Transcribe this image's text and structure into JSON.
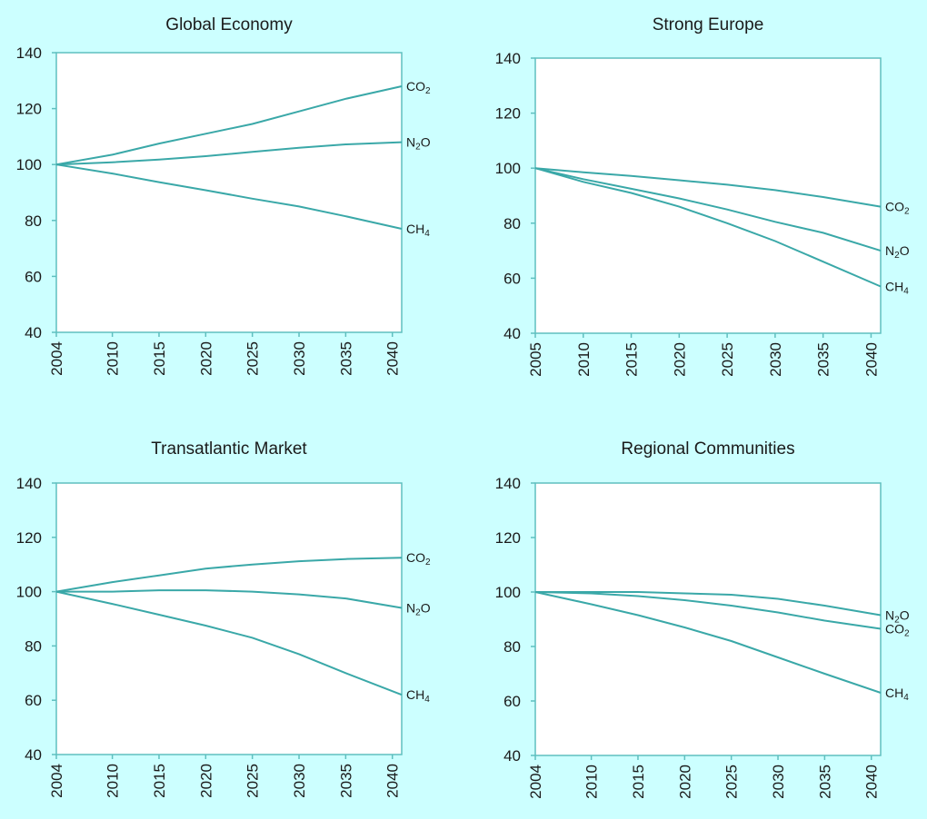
{
  "colors": {
    "background": "#ccffff",
    "plot_bg": "#ffffff",
    "axis": "#5fbfbf",
    "line": "#3aa8a8"
  },
  "chart_data": [
    {
      "type": "line",
      "title": "Global Economy",
      "xlim": [
        2004,
        2041
      ],
      "ylim": [
        40,
        140
      ],
      "yticks": [
        "40",
        "60",
        "80",
        "100",
        "120",
        "140"
      ],
      "xticks": [
        "2004",
        "2010",
        "2015",
        "2020",
        "2025",
        "2030",
        "2035",
        "2040"
      ],
      "series": [
        {
          "label_main": "CO",
          "label_sub": "2",
          "x": [
            2004,
            2010,
            2015,
            2020,
            2025,
            2030,
            2035,
            2041
          ],
          "y": [
            100,
            103.5,
            107.5,
            111,
            114.5,
            119,
            123.5,
            128
          ]
        },
        {
          "label_main": "N",
          "label_sub": "2",
          "label_tail": "O",
          "x": [
            2004,
            2010,
            2015,
            2020,
            2025,
            2030,
            2035,
            2041
          ],
          "y": [
            100,
            100.8,
            101.8,
            103,
            104.5,
            106,
            107.2,
            108
          ]
        },
        {
          "label_main": "CH",
          "label_sub": "4",
          "x": [
            2004,
            2010,
            2015,
            2020,
            2025,
            2030,
            2035,
            2041
          ],
          "y": [
            100,
            96.8,
            93.7,
            90.8,
            87.8,
            85,
            81.5,
            77
          ]
        }
      ]
    },
    {
      "type": "line",
      "title": "Strong Europe",
      "xlim": [
        2005,
        2041
      ],
      "ylim": [
        40,
        140
      ],
      "yticks": [
        "40",
        "60",
        "80",
        "100",
        "120",
        "140"
      ],
      "xticks": [
        "2005",
        "2010",
        "2015",
        "2020",
        "2025",
        "2030",
        "2035",
        "2040"
      ],
      "series": [
        {
          "label_main": "CO",
          "label_sub": "2",
          "x": [
            2005,
            2010,
            2015,
            2020,
            2025,
            2030,
            2035,
            2041
          ],
          "y": [
            100,
            98.5,
            97.2,
            95.6,
            94,
            92,
            89.5,
            86
          ]
        },
        {
          "label_main": "N",
          "label_sub": "2",
          "label_tail": "O",
          "x": [
            2005,
            2010,
            2015,
            2020,
            2025,
            2030,
            2035,
            2041
          ],
          "y": [
            100,
            96,
            92.5,
            89,
            85,
            80.5,
            76.5,
            70
          ]
        },
        {
          "label_main": "CH",
          "label_sub": "4",
          "x": [
            2005,
            2010,
            2015,
            2020,
            2025,
            2030,
            2035,
            2041
          ],
          "y": [
            100,
            95,
            91,
            86,
            80,
            73.5,
            66,
            57
          ]
        }
      ]
    },
    {
      "type": "line",
      "title": "Transatlantic Market",
      "xlim": [
        2004,
        2041
      ],
      "ylim": [
        40,
        140
      ],
      "yticks": [
        "40",
        "60",
        "80",
        "100",
        "120",
        "140"
      ],
      "xticks": [
        "2004",
        "2010",
        "2015",
        "2020",
        "2025",
        "2030",
        "2035",
        "2040"
      ],
      "series": [
        {
          "label_main": "CO",
          "label_sub": "2",
          "x": [
            2004,
            2010,
            2015,
            2020,
            2025,
            2030,
            2035,
            2041
          ],
          "y": [
            100,
            103.5,
            106,
            108.5,
            110,
            111.2,
            112,
            112.5
          ]
        },
        {
          "label_main": "N",
          "label_sub": "2",
          "label_tail": "O",
          "x": [
            2004,
            2010,
            2015,
            2020,
            2025,
            2030,
            2035,
            2041
          ],
          "y": [
            100,
            100,
            100.5,
            100.5,
            100,
            99,
            97.5,
            94
          ]
        },
        {
          "label_main": "CH",
          "label_sub": "4",
          "x": [
            2004,
            2010,
            2015,
            2020,
            2025,
            2030,
            2035,
            2041
          ],
          "y": [
            100,
            95.5,
            91.5,
            87.5,
            83,
            77,
            70,
            62
          ]
        }
      ]
    },
    {
      "type": "line",
      "title": "Regional Communities",
      "xlim": [
        2004,
        2041
      ],
      "ylim": [
        40,
        140
      ],
      "yticks": [
        "40",
        "60",
        "80",
        "100",
        "120",
        "140"
      ],
      "xticks": [
        "2004",
        "2010",
        "2015",
        "2020",
        "2025",
        "2030",
        "2035",
        "2040"
      ],
      "series": [
        {
          "label_main": "N",
          "label_sub": "2",
          "label_tail": "O",
          "x": [
            2004,
            2010,
            2015,
            2020,
            2025,
            2030,
            2035,
            2041
          ],
          "y": [
            100,
            100,
            100,
            99.5,
            99,
            97.5,
            95,
            91.5
          ]
        },
        {
          "label_main": "CO",
          "label_sub": "2",
          "x": [
            2004,
            2010,
            2015,
            2020,
            2025,
            2030,
            2035,
            2041
          ],
          "y": [
            100,
            99.5,
            98.5,
            97,
            95,
            92.5,
            89.5,
            86.5
          ]
        },
        {
          "label_main": "CH",
          "label_sub": "4",
          "x": [
            2004,
            2010,
            2015,
            2020,
            2025,
            2030,
            2035,
            2041
          ],
          "y": [
            100,
            95.5,
            91.5,
            87,
            82,
            76,
            70,
            63
          ]
        }
      ]
    }
  ]
}
